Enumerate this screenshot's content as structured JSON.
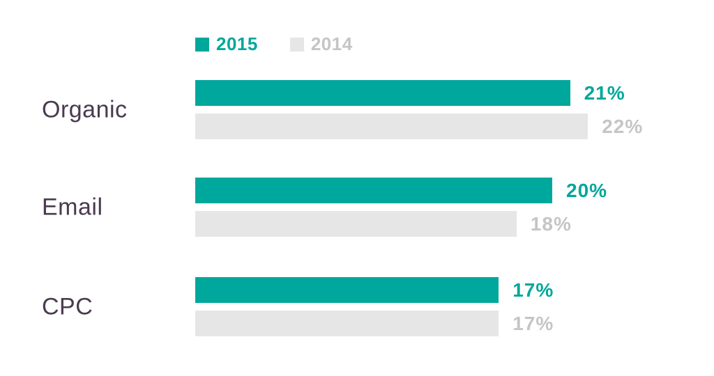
{
  "colors": {
    "teal": "#00a79c",
    "gray_bar": "#e6e6e6",
    "gray_text": "#c5c5c5",
    "category_label": "#4a3a4f",
    "background": "#ffffff"
  },
  "chart_data": {
    "type": "bar",
    "orientation": "horizontal",
    "title": "",
    "categories": [
      "Organic",
      "Email",
      "CPC"
    ],
    "series": [
      {
        "name": "2015",
        "color_key": "teal",
        "values": [
          21,
          20,
          17
        ],
        "labels": [
          "21%",
          "20%",
          "17%"
        ]
      },
      {
        "name": "2014",
        "color_key": "gray_bar",
        "values": [
          22,
          18,
          17
        ],
        "labels": [
          "22%",
          "18%",
          "17%"
        ]
      }
    ],
    "unit": "%",
    "value_axis_range": [
      0,
      22
    ],
    "grid": false,
    "legend_position": "top"
  }
}
